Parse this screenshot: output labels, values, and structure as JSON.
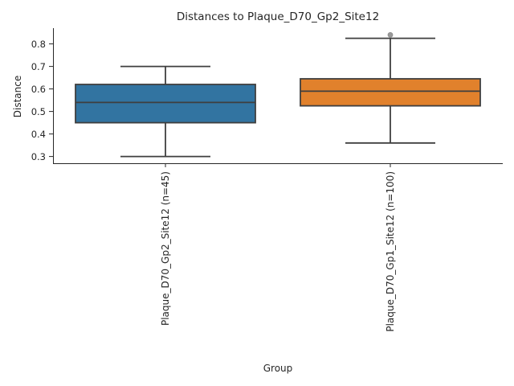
{
  "chart_data": {
    "type": "box",
    "title": "Distances to Plaque_D70_Gp2_Site12",
    "xlabel": "Group",
    "ylabel": "Distance",
    "ylim": [
      0.27,
      0.87
    ],
    "yticks": [
      0.3,
      0.4,
      0.5,
      0.6,
      0.7,
      0.8
    ],
    "grid": false,
    "legend": "none",
    "groups": [
      {
        "label": "Plaque_D70_Gp2_Site12 (n=45)",
        "color": "#3274a1",
        "whisker_low": 0.3,
        "q1": 0.45,
        "median": 0.54,
        "q3": 0.62,
        "whisker_high": 0.7,
        "outliers": []
      },
      {
        "label": "Plaque_D70_Gp1_Site12 (n=100)",
        "color": "#e1812c",
        "whisker_low": 0.36,
        "q1": 0.525,
        "median": 0.59,
        "q3": 0.645,
        "whisker_high": 0.825,
        "outliers": [
          0.84
        ]
      }
    ]
  }
}
